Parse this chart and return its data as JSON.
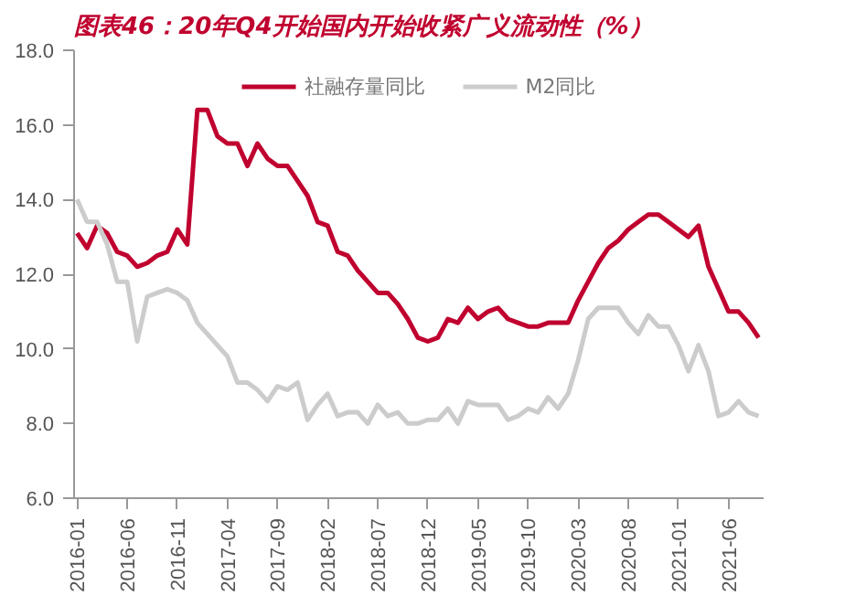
{
  "chart_data": {
    "type": "line",
    "title": "图表46：20年Q4开始国内开始收紧广义流动性（%）",
    "categories": [
      "2016-01",
      null,
      null,
      null,
      null,
      "2016-06",
      null,
      null,
      null,
      null,
      "2016-11",
      null,
      null,
      null,
      null,
      "2017-04",
      null,
      null,
      null,
      null,
      "2017-09",
      null,
      null,
      null,
      null,
      "2018-02",
      null,
      null,
      null,
      null,
      "2018-07",
      null,
      null,
      null,
      null,
      "2018-12",
      null,
      null,
      null,
      null,
      "2019-05",
      null,
      null,
      null,
      null,
      "2019-10",
      null,
      null,
      null,
      null,
      "2020-03",
      null,
      null,
      null,
      null,
      "2020-08",
      null,
      null,
      null,
      null,
      "2021-01",
      null,
      null,
      null,
      null,
      "2021-06",
      null,
      null,
      null
    ],
    "series": [
      {
        "name": "社融存量同比",
        "color": "#c0002f",
        "values": [
          13.1,
          12.7,
          13.3,
          13.1,
          12.6,
          12.5,
          12.2,
          12.3,
          12.5,
          12.6,
          13.2,
          12.8,
          16.4,
          16.4,
          15.7,
          15.5,
          15.5,
          14.9,
          15.5,
          15.1,
          14.9,
          14.9,
          14.5,
          14.1,
          13.4,
          13.3,
          12.6,
          12.5,
          12.1,
          11.8,
          11.5,
          11.5,
          11.2,
          10.8,
          10.3,
          10.2,
          10.3,
          10.8,
          10.7,
          11.1,
          10.8,
          11.0,
          11.1,
          10.8,
          10.7,
          10.6,
          10.6,
          10.7,
          10.7,
          10.7,
          11.3,
          11.8,
          12.3,
          12.7,
          12.9,
          13.2,
          13.4,
          13.6,
          13.6,
          13.4,
          13.2,
          13.0,
          13.3,
          12.2,
          11.6,
          11.0,
          11.0,
          10.7,
          10.3
        ]
      },
      {
        "name": "M2同比",
        "color": "#cccccc",
        "values": [
          14.0,
          13.4,
          13.4,
          12.8,
          11.8,
          11.8,
          10.2,
          11.4,
          11.5,
          11.6,
          11.5,
          11.3,
          10.7,
          10.4,
          10.1,
          9.8,
          9.1,
          9.1,
          8.9,
          8.6,
          9.0,
          8.9,
          9.1,
          8.1,
          8.5,
          8.8,
          8.2,
          8.3,
          8.3,
          8.0,
          8.5,
          8.2,
          8.3,
          8.0,
          8.0,
          8.1,
          8.1,
          8.4,
          8.0,
          8.6,
          8.5,
          8.5,
          8.5,
          8.1,
          8.2,
          8.4,
          8.3,
          8.7,
          8.4,
          8.8,
          9.7,
          10.8,
          11.1,
          11.1,
          11.1,
          10.7,
          10.4,
          10.9,
          10.6,
          10.6,
          10.1,
          9.4,
          10.1,
          9.4,
          8.2,
          8.3,
          8.6,
          8.3,
          8.2
        ]
      }
    ],
    "ylim": [
      6.0,
      18.0
    ],
    "yticks": [
      {
        "value": 6,
        "label": "6.0"
      },
      {
        "value": 8,
        "label": "8.0"
      },
      {
        "value": 10,
        "label": "10.0"
      },
      {
        "value": 12,
        "label": "12.0"
      },
      {
        "value": 14,
        "label": "14.0"
      },
      {
        "value": 16,
        "label": "16.0"
      },
      {
        "value": 18,
        "label": "18.0"
      }
    ],
    "grid": false,
    "legend": "top",
    "marker": "none",
    "line_style": "solid"
  }
}
